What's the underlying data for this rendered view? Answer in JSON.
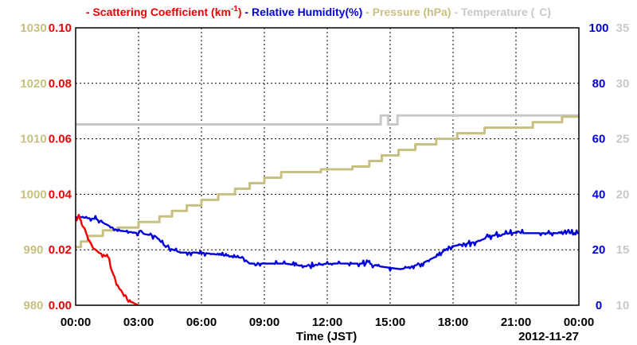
{
  "chart_data": {
    "type": "line",
    "date_label": "2012-11-27",
    "xlabel": "Time (JST)",
    "x_ticks": [
      "00:00",
      "03:00",
      "06:00",
      "09:00",
      "12:00",
      "15:00",
      "18:00",
      "21:00",
      "00:00"
    ],
    "grid": true,
    "legend_position": "top",
    "axes": {
      "pressure": {
        "label": "Pressure (hPa)",
        "ticks": [
          "980",
          "990",
          "1000",
          "1010",
          "1020",
          "1030"
        ],
        "range": [
          980,
          1030
        ],
        "color": "#c8c080"
      },
      "scattering": {
        "label": "Scattering Coefficient (km-1)",
        "ticks": [
          "0.00",
          "0.02",
          "0.04",
          "0.06",
          "0.08",
          "0.10"
        ],
        "range": [
          0,
          0.1
        ],
        "color": "#ee0000"
      },
      "humidity": {
        "label": "Relative Humidity(%)",
        "ticks": [
          "0",
          "20",
          "40",
          "60",
          "80",
          "100"
        ],
        "range": [
          0,
          100
        ],
        "color": "#0000dd"
      },
      "temperature": {
        "label": "Temperature (C)",
        "ticks": [
          "10",
          "15",
          "20",
          "25",
          "30",
          "35"
        ],
        "range": [
          10,
          35
        ],
        "color": "#c8c8c8"
      }
    },
    "legend": [
      {
        "text": "Scattering Coefficient (km",
        "sup": "-1",
        "tail": ")",
        "color": "#ee0000"
      },
      {
        "text": "Relative Humidity(%)",
        "color": "#0000dd"
      },
      {
        "text": "Pressure (hPa)",
        "color": "#c8c080"
      },
      {
        "text": "Temperature (",
        "tail": "C)",
        "color": "#c8c8c8"
      }
    ],
    "series": [
      {
        "name": "Scattering Coefficient (km-1)",
        "axis": "scattering",
        "color": "#ee0000",
        "style": "noisy",
        "points": [
          [
            0,
            0.031
          ],
          [
            0.15,
            0.032
          ],
          [
            0.35,
            0.029
          ],
          [
            0.55,
            0.025
          ],
          [
            0.8,
            0.021
          ],
          [
            1.1,
            0.019
          ],
          [
            1.4,
            0.018
          ],
          [
            1.6,
            0.017
          ],
          [
            1.75,
            0.012
          ],
          [
            1.95,
            0.008
          ],
          [
            2.15,
            0.005
          ],
          [
            2.4,
            0.003
          ],
          [
            2.7,
            0.001
          ],
          [
            3.0,
            0.0
          ]
        ]
      },
      {
        "name": "Relative Humidity(%)",
        "axis": "humidity",
        "color": "#0000dd",
        "style": "noisy",
        "points": [
          [
            0,
            32
          ],
          [
            1.0,
            31
          ],
          [
            1.5,
            29
          ],
          [
            2.0,
            27
          ],
          [
            3.0,
            26
          ],
          [
            3.8,
            25
          ],
          [
            4.3,
            21
          ],
          [
            5.0,
            19
          ],
          [
            6.0,
            19
          ],
          [
            7.0,
            18
          ],
          [
            8.0,
            17
          ],
          [
            8.3,
            15
          ],
          [
            10,
            15
          ],
          [
            11,
            14
          ],
          [
            12,
            15
          ],
          [
            13,
            15
          ],
          [
            14,
            15
          ],
          [
            14.5,
            14
          ],
          [
            15.5,
            13
          ],
          [
            16.5,
            15
          ],
          [
            17.3,
            18
          ],
          [
            17.8,
            21
          ],
          [
            18.5,
            22
          ],
          [
            19.2,
            23
          ],
          [
            19.8,
            25
          ],
          [
            20.8,
            26
          ],
          [
            24,
            26
          ]
        ]
      },
      {
        "name": "Pressure (hPa)",
        "axis": "pressure",
        "color": "#c8c080",
        "style": "step",
        "points": [
          [
            0,
            990.5
          ],
          [
            0.25,
            991.5
          ],
          [
            0.6,
            992.5
          ],
          [
            1.3,
            993.5
          ],
          [
            2.0,
            994
          ],
          [
            3.0,
            995
          ],
          [
            4.0,
            996
          ],
          [
            4.6,
            997
          ],
          [
            5.3,
            998
          ],
          [
            6.0,
            999
          ],
          [
            6.8,
            1000
          ],
          [
            7.6,
            1001
          ],
          [
            8.3,
            1002
          ],
          [
            9.0,
            1003
          ],
          [
            9.8,
            1004
          ],
          [
            11.7,
            1004.5
          ],
          [
            13.2,
            1005
          ],
          [
            14.0,
            1006
          ],
          [
            14.6,
            1007
          ],
          [
            15.4,
            1008
          ],
          [
            16.2,
            1009
          ],
          [
            17.2,
            1010
          ],
          [
            18.2,
            1011
          ],
          [
            19.5,
            1012
          ],
          [
            21.8,
            1013
          ],
          [
            23.2,
            1014
          ],
          [
            24.0,
            1014
          ]
        ]
      },
      {
        "name": "Temperature (C)",
        "axis": "temperature",
        "color": "#c8c8c8",
        "style": "step",
        "points": [
          [
            0,
            26.3
          ],
          [
            14.5,
            26.3
          ],
          [
            14.55,
            27.1
          ],
          [
            14.85,
            27.1
          ],
          [
            14.9,
            26.3
          ],
          [
            15.3,
            26.3
          ],
          [
            15.35,
            27.1
          ],
          [
            24.0,
            27.1
          ]
        ]
      }
    ]
  }
}
